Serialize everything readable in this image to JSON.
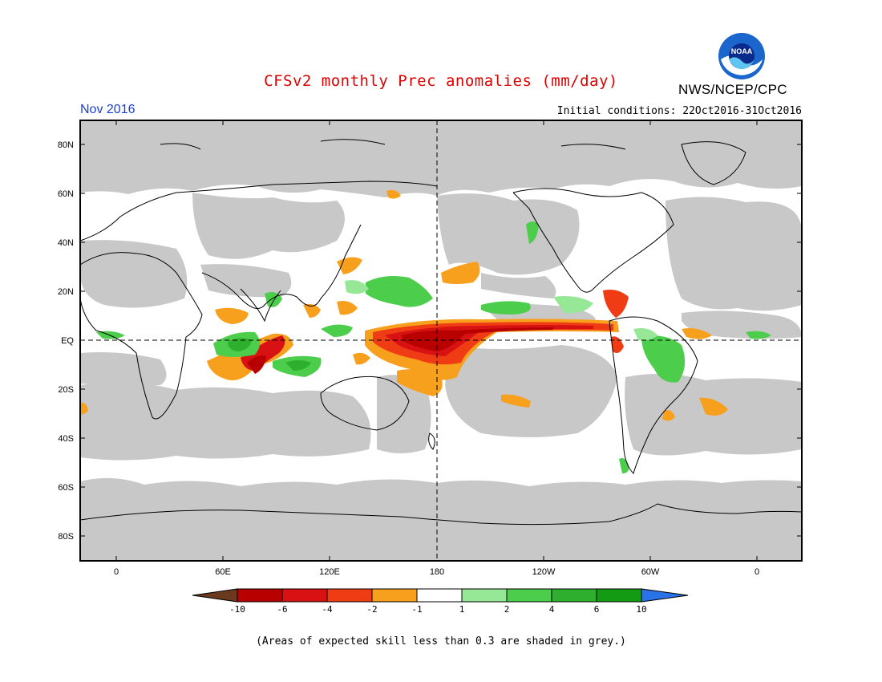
{
  "header": {
    "title": "CFSv2 monthly Prec anomalies (mm/day)",
    "organization": "NWS/NCEP/CPC",
    "month": "Nov 2016",
    "initial_conditions": "Initial conditions: 22Oct2016-31Oct2016",
    "logo_text": "NOAA"
  },
  "map": {
    "lat_labels": [
      "80N",
      "60N",
      "40N",
      "20N",
      "EQ",
      "20S",
      "40S",
      "60S",
      "80S"
    ],
    "lon_labels": [
      "0",
      "60E",
      "120E",
      "180",
      "120W",
      "60W",
      "0"
    ],
    "colors": {
      "grey": "#c8c8c8",
      "brown": "#6b3a1e",
      "darkred": "#b80000",
      "red": "#d81212",
      "orangered": "#f03c14",
      "orange": "#f7a01e",
      "white": "#ffffff",
      "lightgreen": "#96e896",
      "green": "#4ccd4c",
      "midgreen": "#2eb02e",
      "darkgreen": "#139c13",
      "blue": "#2a72e8"
    }
  },
  "colorbar": {
    "tick_labels": [
      "-10",
      "-6",
      "-4",
      "-2",
      "-1",
      "1",
      "2",
      "4",
      "6",
      "10"
    ]
  },
  "footer": {
    "note": "(Areas of expected skill less than 0.3 are shaded in grey.)"
  }
}
